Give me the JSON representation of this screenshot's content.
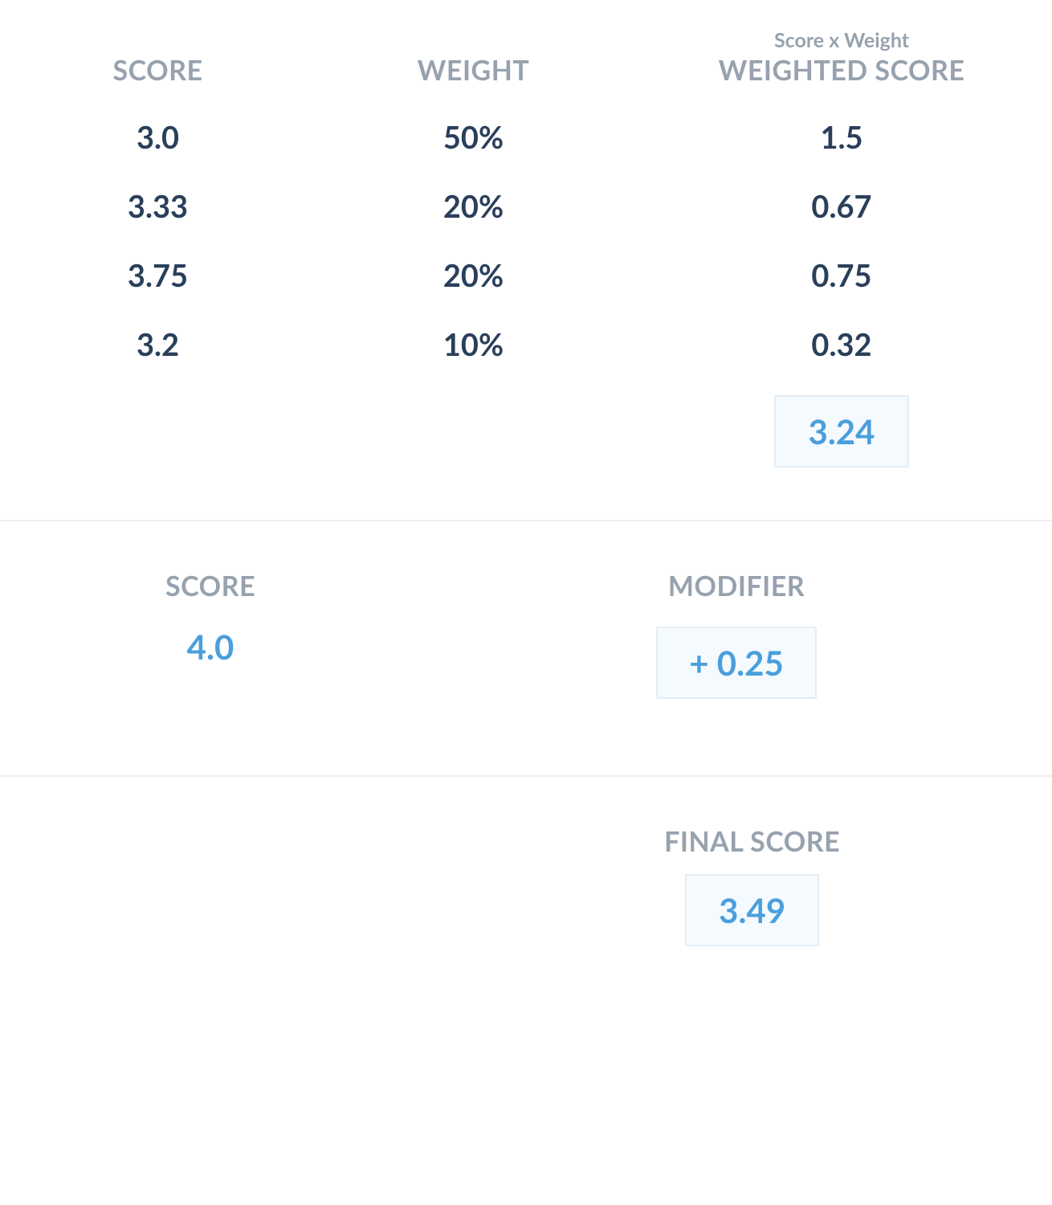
{
  "colors": {
    "header_text": "#97a2ae",
    "data_text": "#2a3f5a",
    "highlight_text": "#4a9fdc",
    "box_bg": "#f5fafe",
    "box_border": "#e5eef5",
    "divider": "#eceff2",
    "page_bg": "#ffffff"
  },
  "typography": {
    "header_fontsize": 34,
    "sublabel_fontsize": 25,
    "data_fontsize": 38,
    "highlight_fontsize": 42,
    "font_family": "Lato, Helvetica Neue, Helvetica, Arial, sans-serif"
  },
  "weighted_table": {
    "headers": {
      "score": "SCORE",
      "weight": "WEIGHT",
      "weighted_sublabel": "Score x Weight",
      "weighted": "WEIGHTED SCORE"
    },
    "rows": [
      {
        "score": "3.0",
        "weight": "50%",
        "weighted": "1.5"
      },
      {
        "score": "3.33",
        "weight": "20%",
        "weighted": "0.67"
      },
      {
        "score": "3.75",
        "weight": "20%",
        "weighted": "0.75"
      },
      {
        "score": "3.2",
        "weight": "10%",
        "weighted": "0.32"
      }
    ],
    "total": "3.24"
  },
  "modifier_section": {
    "score_label": "SCORE",
    "score_value": "4.0",
    "modifier_label": "MODIFIER",
    "modifier_value": "+ 0.25"
  },
  "final_section": {
    "label": "FINAL SCORE",
    "value": "3.49"
  }
}
